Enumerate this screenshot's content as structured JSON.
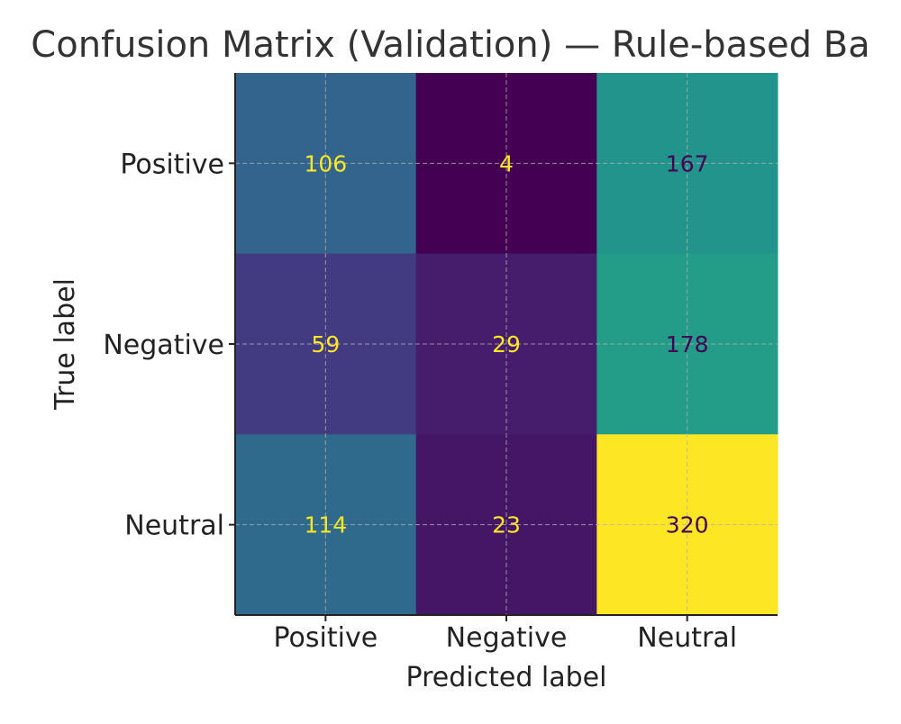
{
  "chart_data": {
    "type": "heatmap",
    "title": "Confusion Matrix (Validation) — Rule-based Ba",
    "xlabel": "Predicted label",
    "ylabel": "True label",
    "x_categories": [
      "Positive",
      "Negative",
      "Neutral"
    ],
    "y_categories": [
      "Positive",
      "Negative",
      "Neutral"
    ],
    "values": [
      [
        106,
        4,
        167
      ],
      [
        59,
        29,
        178
      ],
      [
        114,
        23,
        320
      ]
    ],
    "value_range": [
      4,
      320
    ],
    "colormap": "viridis",
    "grid": true,
    "colors": {
      "text_light": "#fde725",
      "text_dark": "#440154",
      "axis": "#222222",
      "title": "#333333"
    }
  }
}
